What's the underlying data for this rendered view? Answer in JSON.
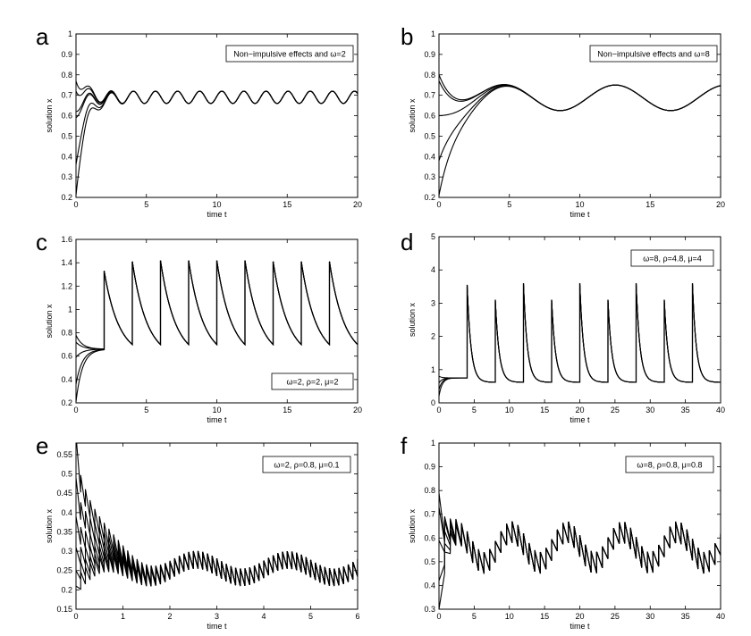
{
  "chart_data": [
    {
      "type": "line",
      "panel_letter": "a",
      "xlabel": "time t",
      "ylabel": "solution x",
      "xlim": [
        0,
        20
      ],
      "ylim": [
        0.2,
        1
      ],
      "xticks": [
        "0",
        "5",
        "10",
        "15",
        "20"
      ],
      "yticks": [
        "0.2",
        "0.3",
        "0.4",
        "0.5",
        "0.6",
        "0.7",
        "0.8",
        "0.9",
        "1"
      ],
      "annotation": "Non−impulsive effects and ω=2",
      "grid": false,
      "initial_values": [
        0.21,
        0.36,
        0.59,
        0.62,
        0.72,
        0.77
      ],
      "period": 1.57,
      "oscillation_min": 0.66,
      "oscillation_max": 0.72
    },
    {
      "type": "line",
      "panel_letter": "b",
      "xlabel": "time t",
      "ylabel": "solution x",
      "xlim": [
        0,
        20
      ],
      "ylim": [
        0.2,
        1
      ],
      "xticks": [
        "0",
        "5",
        "10",
        "15",
        "20"
      ],
      "yticks": [
        "0.2",
        "0.3",
        "0.4",
        "0.5",
        "0.6",
        "0.7",
        "0.8",
        "0.9",
        "1"
      ],
      "annotation": "Non−impulsive effects and ω=8",
      "grid": false,
      "initial_values": [
        0.21,
        0.38,
        0.6,
        0.77,
        0.8
      ],
      "period": 7.85,
      "oscillation_min": 0.625,
      "oscillation_max": 0.75
    },
    {
      "type": "line",
      "panel_letter": "c",
      "xlabel": "time t",
      "ylabel": "solution x",
      "xlim": [
        0,
        20
      ],
      "ylim": [
        0.2,
        1.6
      ],
      "xticks": [
        "0",
        "5",
        "10",
        "15",
        "20"
      ],
      "yticks": [
        "0.2",
        "0.4",
        "0.6",
        "0.8",
        "1",
        "1.2",
        "1.4",
        "1.6"
      ],
      "annotation": "ω=2,  ρ=2,  μ=2",
      "grid": false,
      "initial_values": [
        0.21,
        0.36,
        0.59,
        0.72,
        0.78
      ],
      "impulse_times": [
        2,
        4,
        6,
        8,
        10,
        12,
        14,
        16,
        18
      ],
      "peak_values": [
        1.33,
        1.41,
        1.42,
        1.42,
        1.42,
        1.42,
        1.41,
        1.41,
        1.41
      ],
      "trough_value": 0.7
    },
    {
      "type": "line",
      "panel_letter": "d",
      "xlabel": "time t",
      "ylabel": "solution x",
      "xlim": [
        0,
        40
      ],
      "ylim": [
        0,
        5
      ],
      "xticks": [
        "0",
        "5",
        "10",
        "15",
        "20",
        "25",
        "30",
        "35",
        "40"
      ],
      "yticks": [
        "0",
        "1",
        "2",
        "3",
        "4",
        "5"
      ],
      "annotation": "ω=8,  ρ=4.8,  μ=4",
      "grid": false,
      "initial_values": [
        0.2,
        0.4,
        0.6,
        0.8
      ],
      "impulse_times": [
        4,
        8,
        12,
        16,
        20,
        24,
        28,
        32,
        36
      ],
      "peak_values": [
        3.55,
        3.1,
        3.6,
        3.1,
        3.6,
        3.1,
        3.6,
        3.1,
        3.6
      ],
      "trough_value": 0.62
    },
    {
      "type": "line",
      "panel_letter": "e",
      "xlabel": "time t",
      "ylabel": "solution x",
      "xlim": [
        0,
        6
      ],
      "ylim": [
        0.15,
        0.58
      ],
      "xticks": [
        "0",
        "1",
        "2",
        "3",
        "4",
        "5",
        "6"
      ],
      "yticks": [
        "0.15",
        "0.2",
        "0.25",
        "0.3",
        "0.35",
        "0.4",
        "0.45",
        "0.5",
        "0.55"
      ],
      "annotation": "ω=2,  ρ=0.8,  μ=0.1",
      "grid": false,
      "initial_values": [
        0.21,
        0.25,
        0.31,
        0.39,
        0.49,
        0.6
      ],
      "impulse_spacing": 0.1,
      "envelope_period": 1.95,
      "envelope_min": 0.21,
      "envelope_max": 0.3
    },
    {
      "type": "line",
      "panel_letter": "f",
      "xlabel": "time t",
      "ylabel": "solution x",
      "xlim": [
        0,
        40
      ],
      "ylim": [
        0.3,
        1
      ],
      "xticks": [
        "0",
        "5",
        "10",
        "15",
        "20",
        "25",
        "30",
        "35",
        "40"
      ],
      "yticks": [
        "0.3",
        "0.4",
        "0.5",
        "0.6",
        "0.7",
        "0.8",
        "0.9",
        "1"
      ],
      "annotation": "ω=8,  ρ=0.8,  μ=0.8",
      "grid": false,
      "initial_values": [
        0.3,
        0.42,
        0.59,
        0.73,
        0.79
      ],
      "impulse_spacing": 0.8,
      "envelope_period": 7.85,
      "envelope_min": 0.45,
      "envelope_max": 0.67
    }
  ]
}
